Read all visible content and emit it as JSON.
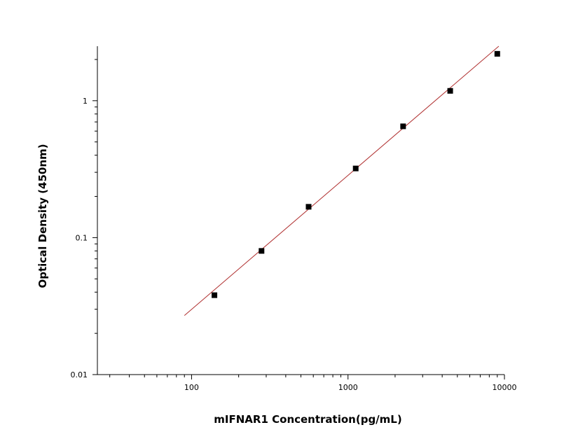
{
  "chart_data": {
    "type": "scatter",
    "title": "",
    "xlabel": "mIFNAR1 Concentration(pg/mL)",
    "ylabel": "Optical Density (450nm)",
    "x_scale": "log",
    "y_scale": "log",
    "xlim": [
      25,
      10000
    ],
    "ylim": [
      0.01,
      2.5
    ],
    "x_ticks": [
      {
        "value": 100,
        "label": "100"
      },
      {
        "value": 1000,
        "label": "1000"
      },
      {
        "value": 10000,
        "label": "10000"
      }
    ],
    "y_ticks": [
      {
        "value": 0.01,
        "label": "0.01"
      },
      {
        "value": 0.1,
        "label": "0.1"
      },
      {
        "value": 1,
        "label": "1"
      }
    ],
    "grid": false,
    "legend": "none",
    "series": [
      {
        "x": [
          140,
          280,
          560,
          1120,
          2250,
          4500,
          9000
        ],
        "y": [
          0.038,
          0.08,
          0.168,
          0.32,
          0.65,
          1.18,
          2.2
        ],
        "marker": "square",
        "color": "#000000"
      }
    ],
    "fit_line": {
      "x": [
        90,
        9200
      ],
      "y": [
        0.027,
        2.5
      ],
      "color": "#b03030"
    }
  }
}
